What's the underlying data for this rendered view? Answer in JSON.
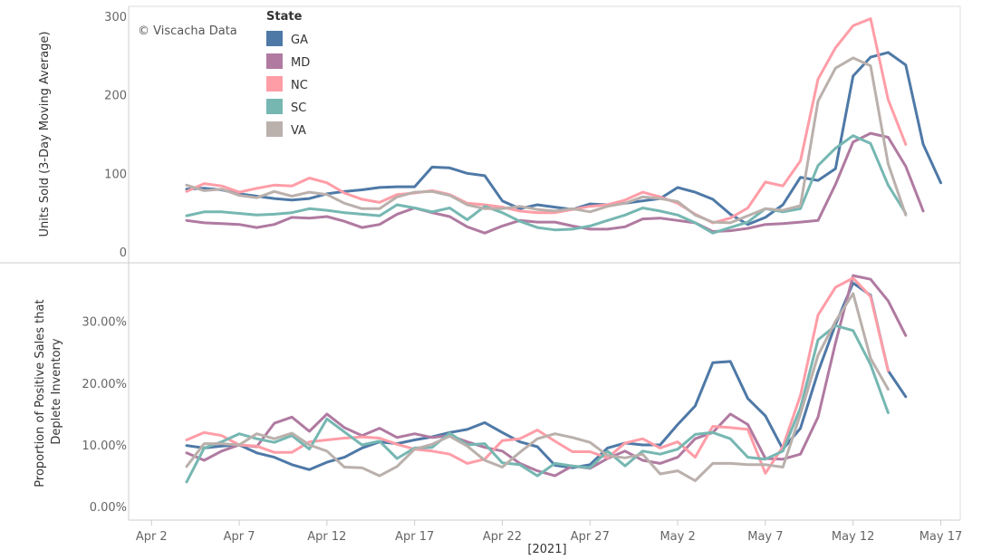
{
  "watermark": "© Viscacha Data",
  "x_axis": {
    "ticks": [
      "Apr 2",
      "Apr 7",
      "Apr 12",
      "Apr 17",
      "Apr 22",
      "Apr 27",
      "May 2",
      "May 7",
      "May 12",
      "May 17"
    ],
    "title": "[2021]"
  },
  "legend": {
    "title": "State",
    "placement": "top-left",
    "items": [
      {
        "name": "GA",
        "color": "#4e79a7"
      },
      {
        "name": "MD",
        "color": "#b07aa1"
      },
      {
        "name": "NC",
        "color": "#ff9da7"
      },
      {
        "name": "SC",
        "color": "#76b7b2"
      },
      {
        "name": "VA",
        "color": "#bab0ac"
      }
    ]
  },
  "chart_data": [
    {
      "type": "line",
      "ylabel": "Units Sold (3-Day Moving Average)",
      "ylim": [
        0,
        300
      ],
      "yticks": [
        {
          "v": 0,
          "label": "0"
        },
        {
          "v": 100,
          "label": "100"
        },
        {
          "v": 200,
          "label": "200"
        },
        {
          "v": 300,
          "label": "300"
        }
      ],
      "x_start": "2021-04-04",
      "grid": false,
      "series": [
        {
          "name": "GA",
          "color": "#4e79a7",
          "values": [
            80,
            81,
            79,
            74,
            71,
            68,
            66,
            68,
            74,
            77,
            79,
            82,
            83,
            83,
            108,
            107,
            100,
            97,
            65,
            55,
            60,
            57,
            54,
            61,
            60,
            62,
            65,
            68,
            82,
            76,
            67,
            48,
            35,
            44,
            60,
            95,
            91,
            106,
            224,
            248,
            254,
            238,
            137,
            88
          ]
        },
        {
          "name": "MD",
          "color": "#b07aa1",
          "values": [
            40,
            37,
            36,
            35,
            31,
            35,
            44,
            43,
            45,
            39,
            31,
            35,
            48,
            56,
            50,
            45,
            32,
            24,
            33,
            40,
            38,
            38,
            33,
            29,
            29,
            32,
            42,
            43,
            40,
            37,
            26,
            27,
            30,
            35,
            36,
            38,
            40,
            86,
            140,
            151,
            146,
            109,
            52
          ]
        },
        {
          "name": "NC",
          "color": "#ff9da7",
          "values": [
            77,
            87,
            84,
            76,
            81,
            85,
            84,
            94,
            88,
            75,
            67,
            63,
            73,
            75,
            78,
            73,
            62,
            60,
            57,
            52,
            50,
            50,
            54,
            58,
            60,
            66,
            76,
            70,
            62,
            48,
            37,
            43,
            56,
            89,
            84,
            116,
            220,
            260,
            288,
            297,
            194,
            137
          ]
        },
        {
          "name": "SC",
          "color": "#76b7b2",
          "values": [
            46,
            51,
            51,
            49,
            47,
            48,
            50,
            55,
            53,
            50,
            48,
            46,
            60,
            56,
            51,
            56,
            41,
            58,
            50,
            39,
            31,
            28,
            29,
            33,
            40,
            47,
            56,
            52,
            47,
            37,
            24,
            31,
            38,
            55,
            51,
            55,
            110,
            132,
            148,
            138,
            85,
            49
          ]
        },
        {
          "name": "VA",
          "color": "#bab0ac",
          "values": [
            85,
            78,
            80,
            72,
            69,
            77,
            71,
            76,
            73,
            62,
            55,
            55,
            70,
            76,
            77,
            72,
            60,
            55,
            55,
            58,
            54,
            52,
            55,
            51,
            58,
            62,
            70,
            68,
            64,
            47,
            38,
            37,
            46,
            55,
            53,
            59,
            192,
            234,
            247,
            237,
            112,
            47
          ]
        }
      ]
    },
    {
      "type": "line",
      "ylabel": "Proportion of Positive Sales that Deplete Inventory",
      "ylim": [
        -0.01,
        0.38
      ],
      "yticks": [
        {
          "v": 0,
          "label": "0.00%"
        },
        {
          "v": 0.1,
          "label": "10.00%"
        },
        {
          "v": 0.2,
          "label": "20.00%"
        },
        {
          "v": 0.3,
          "label": "30.00%"
        }
      ],
      "x_start": "2021-04-04",
      "grid": false,
      "series": [
        {
          "name": "GA",
          "color": "#4e79a7",
          "values": [
            0.099,
            0.095,
            0.098,
            0.1,
            0.087,
            0.08,
            0.068,
            0.06,
            0.072,
            0.08,
            0.095,
            0.105,
            0.102,
            0.108,
            0.113,
            0.12,
            0.125,
            0.136,
            0.12,
            0.105,
            0.097,
            0.067,
            0.063,
            0.068,
            0.095,
            0.103,
            0.1,
            0.1,
            0.133,
            0.163,
            0.233,
            0.235,
            0.175,
            0.147,
            0.093,
            0.127,
            0.218,
            0.295,
            0.362,
            0.342,
            0.22,
            0.178
          ]
        },
        {
          "name": "MD",
          "color": "#b07aa1",
          "values": [
            0.087,
            0.075,
            0.09,
            0.1,
            0.097,
            0.135,
            0.145,
            0.122,
            0.15,
            0.128,
            0.115,
            0.127,
            0.112,
            0.118,
            0.112,
            0.115,
            0.105,
            0.096,
            0.09,
            0.07,
            0.058,
            0.05,
            0.066,
            0.062,
            0.078,
            0.09,
            0.075,
            0.07,
            0.08,
            0.11,
            0.12,
            0.15,
            0.133,
            0.078,
            0.077,
            0.085,
            0.145,
            0.265,
            0.374,
            0.368,
            0.333,
            0.277
          ]
        },
        {
          "name": "NC",
          "color": "#ff9da7",
          "values": [
            0.108,
            0.12,
            0.115,
            0.1,
            0.098,
            0.088,
            0.088,
            0.105,
            0.108,
            0.111,
            0.113,
            0.111,
            0.101,
            0.093,
            0.09,
            0.085,
            0.07,
            0.077,
            0.107,
            0.11,
            0.124,
            0.106,
            0.089,
            0.089,
            0.079,
            0.103,
            0.11,
            0.095,
            0.105,
            0.08,
            0.13,
            0.128,
            0.125,
            0.054,
            0.097,
            0.18,
            0.31,
            0.355,
            0.37,
            0.34,
            0.22
          ]
        },
        {
          "name": "SC",
          "color": "#76b7b2",
          "values": [
            0.04,
            0.095,
            0.105,
            0.118,
            0.11,
            0.104,
            0.115,
            0.093,
            0.142,
            0.121,
            0.1,
            0.106,
            0.078,
            0.095,
            0.096,
            0.119,
            0.1,
            0.102,
            0.071,
            0.068,
            0.05,
            0.07,
            0.066,
            0.063,
            0.09,
            0.066,
            0.09,
            0.085,
            0.093,
            0.117,
            0.12,
            0.11,
            0.08,
            0.077,
            0.09,
            0.16,
            0.27,
            0.293,
            0.285,
            0.23,
            0.152
          ]
        },
        {
          "name": "VA",
          "color": "#bab0ac",
          "values": [
            0.065,
            0.102,
            0.102,
            0.1,
            0.118,
            0.11,
            0.119,
            0.1,
            0.09,
            0.064,
            0.063,
            0.05,
            0.065,
            0.093,
            0.101,
            0.114,
            0.098,
            0.075,
            0.064,
            0.088,
            0.11,
            0.118,
            0.112,
            0.104,
            0.083,
            0.079,
            0.085,
            0.053,
            0.058,
            0.042,
            0.07,
            0.07,
            0.068,
            0.068,
            0.064,
            0.15,
            0.245,
            0.3,
            0.345,
            0.24,
            0.19
          ]
        }
      ]
    }
  ]
}
